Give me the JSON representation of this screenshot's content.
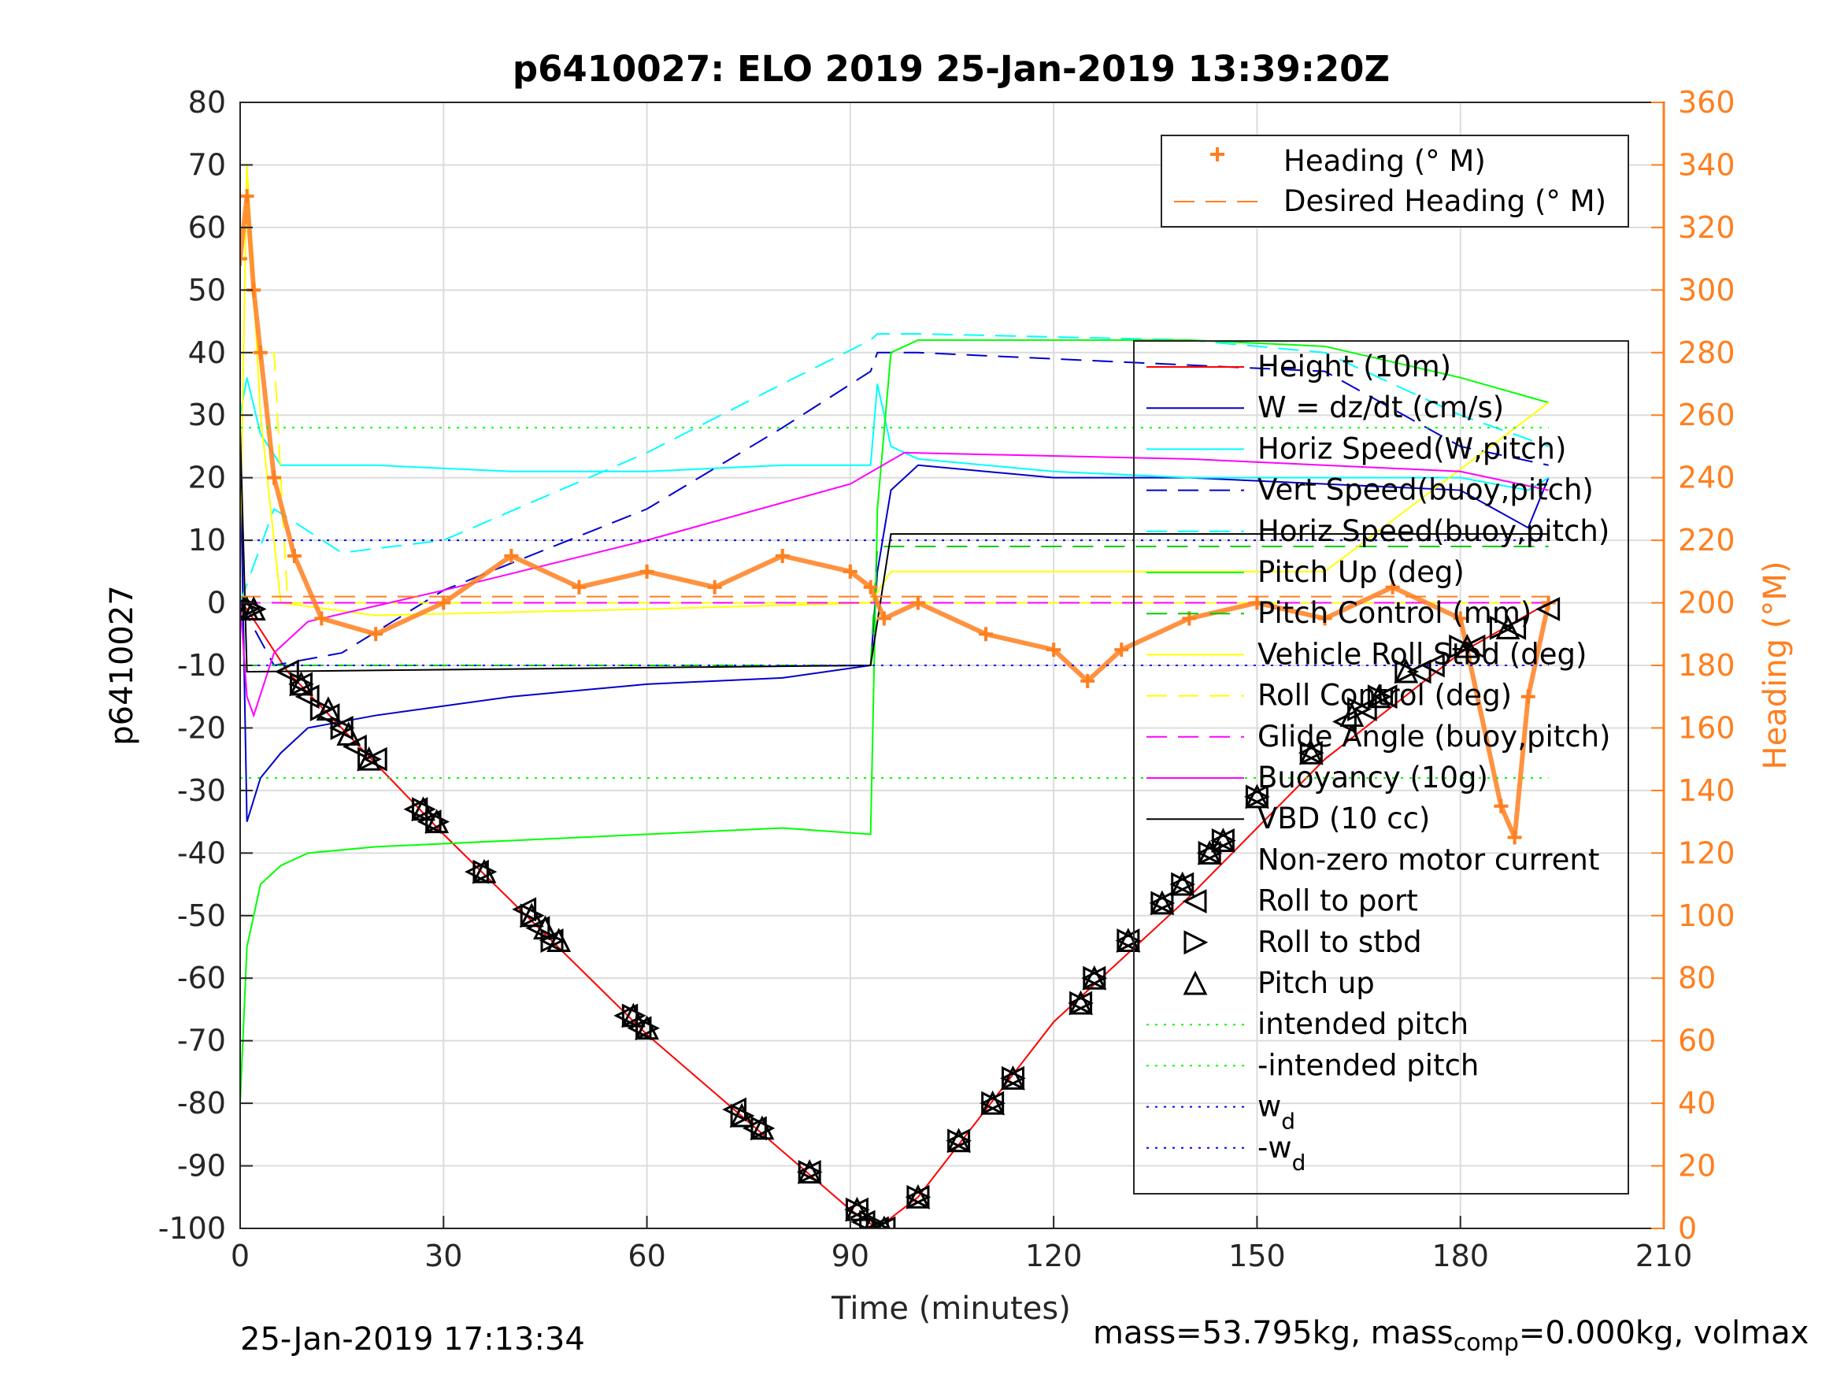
{
  "figure": {
    "title": "p6410027: ELO 2019 25-Jan-2019 13:39:20Z",
    "footer_left": "25-Jan-2019 17:13:34",
    "footer_right_prefix": "mass=53.795kg, mass",
    "footer_right_sub": "comp",
    "footer_right_suffix": "=0.000kg, volmax"
  },
  "chart_data": {
    "type": "line",
    "title": "p6410027: ELO 2019 25-Jan-2019 13:39:20Z",
    "xlabel": "Time (minutes)",
    "ylabel": "p6410027",
    "y2label": "Heading (°M)",
    "xlim": [
      0,
      210
    ],
    "ylim": [
      -100,
      80
    ],
    "y2lim": [
      0,
      360
    ],
    "xticks": [
      0,
      30,
      60,
      90,
      120,
      150,
      180,
      210
    ],
    "yticks": [
      -100,
      -90,
      -80,
      -70,
      -60,
      -50,
      -40,
      -30,
      -20,
      -10,
      0,
      10,
      20,
      30,
      40,
      50,
      60,
      70,
      80
    ],
    "y2ticks": [
      0,
      20,
      40,
      60,
      80,
      100,
      120,
      140,
      160,
      180,
      200,
      220,
      240,
      260,
      280,
      300,
      320,
      340,
      360
    ],
    "grid": true,
    "colors": {
      "height": "#ff0000",
      "w": "#0000cc",
      "horiz_speed_w": "#00ffff",
      "vert_speed_buoy": "#0000cc",
      "horiz_speed_buoy": "#00ffff",
      "pitch_up": "#00ff00",
      "pitch_control": "#00cc00",
      "roll_stbd": "#ffff00",
      "roll_control": "#ffff00",
      "glide_angle": "#ff00ff",
      "buoyancy": "#ff00ff",
      "vbd": "#000000",
      "heading": "#ff7f1f",
      "intended_pitch": "#00ff00",
      "wd": "#0000ff",
      "axis_right": "#ff7f1f"
    },
    "legend_heading": {
      "position": "top-right",
      "entries": [
        "Heading (° M)",
        "Desired Heading (° M)"
      ]
    },
    "legend_main": {
      "position": "right",
      "entries": [
        "Height (10m)",
        "W = dz/dt (cm/s)",
        "Horiz Speed(W,pitch)",
        "Vert Speed(buoy,pitch)",
        "Horiz Speed(buoy,pitch)",
        "Pitch Up (deg)",
        "Pitch Control (mm)",
        "Vehicle Roll Stbd (deg)",
        "Roll Control (deg)",
        "Glide Angle (buoy,pitch)",
        "Buoyancy (10g)",
        "VBD (10 cc)",
        "Non-zero motor current",
        "Roll to port",
        "Roll to stbd",
        "Pitch up",
        "intended pitch",
        "-intended pitch",
        "w",
        "-w"
      ],
      "subscript_entries": {
        "w": "d",
        "-w": "d"
      }
    },
    "series": [
      {
        "name": "Height (10m)",
        "x": [
          0,
          1,
          7,
          30,
          60,
          90,
          94,
          100,
          120,
          140,
          160,
          180,
          193
        ],
        "y": [
          0,
          -1,
          -11,
          -37,
          -69,
          -97,
          -100,
          -95,
          -67,
          -47,
          -25,
          -8,
          0
        ]
      },
      {
        "name": "W = dz/dt (cm/s)",
        "x": [
          0,
          1,
          3,
          6,
          10,
          20,
          40,
          60,
          80,
          93,
          94,
          96,
          100,
          120,
          140,
          160,
          180,
          190,
          193
        ],
        "y": [
          25,
          -35,
          -28,
          -24,
          -20,
          -18,
          -15,
          -13,
          -12,
          -10,
          5,
          18,
          22,
          20,
          20,
          19,
          18,
          12,
          20
        ]
      },
      {
        "name": "Horiz Speed(W,pitch)",
        "x": [
          0,
          1,
          3,
          6,
          10,
          20,
          40,
          60,
          80,
          93,
          94,
          96,
          100,
          120,
          140,
          160,
          180,
          190,
          193
        ],
        "y": [
          30,
          36,
          27,
          22,
          22,
          22,
          21,
          21,
          22,
          22,
          35,
          25,
          23,
          21,
          20,
          20,
          20,
          18,
          20
        ]
      },
      {
        "name": "Vert Speed(buoy,pitch)",
        "x": [
          0,
          5,
          15,
          30,
          60,
          80,
          93,
          94,
          100,
          140,
          160,
          180,
          193
        ],
        "y": [
          0,
          -10,
          -8,
          2,
          15,
          28,
          37,
          40,
          40,
          38,
          37,
          25,
          22
        ]
      },
      {
        "name": "Horiz Speed(buoy,pitch)",
        "x": [
          0,
          5,
          15,
          30,
          60,
          80,
          93,
          94,
          100,
          140,
          160,
          180,
          193
        ],
        "y": [
          0,
          15,
          8,
          10,
          24,
          35,
          42,
          43,
          43,
          42,
          40,
          30,
          25
        ]
      },
      {
        "name": "Pitch Up (deg)",
        "x": [
          0,
          1,
          3,
          6,
          10,
          20,
          40,
          60,
          80,
          93,
          94,
          96,
          100,
          120,
          140,
          160,
          180,
          193
        ],
        "y": [
          -80,
          -55,
          -45,
          -42,
          -40,
          -39,
          -38,
          -37,
          -36,
          -37,
          15,
          40,
          42,
          42,
          42,
          41,
          36,
          32
        ]
      },
      {
        "name": "Pitch Control (mm)",
        "x": [
          0,
          5,
          93,
          94,
          193
        ],
        "y": [
          -10,
          -10,
          -10,
          9,
          9
        ]
      },
      {
        "name": "Vehicle Roll Stbd (deg)",
        "x": [
          0,
          1,
          3,
          6,
          20,
          60,
          93,
          96,
          120,
          160,
          193
        ],
        "y": [
          10,
          70,
          30,
          0,
          -2,
          -1,
          0,
          5,
          5,
          5,
          32
        ]
      },
      {
        "name": "Roll Control (deg)",
        "x": [
          0,
          3,
          5,
          7,
          93,
          100,
          193
        ],
        "y": [
          40,
          40,
          40,
          0,
          0,
          0,
          0
        ]
      },
      {
        "name": "Glide Angle (buoy,pitch)",
        "x": [
          0,
          193
        ],
        "y": [
          0,
          0
        ]
      },
      {
        "name": "Buoyancy (10g)",
        "x": [
          0,
          1,
          2,
          5,
          10,
          30,
          60,
          90,
          98,
          140,
          180,
          193
        ],
        "y": [
          0,
          -15,
          -18,
          -8,
          -3,
          2,
          10,
          19,
          24,
          23,
          21,
          18
        ]
      },
      {
        "name": "VBD (10 cc)",
        "x": [
          0,
          1,
          2,
          93,
          96,
          193
        ],
        "y": [
          28,
          -11,
          -11,
          -10,
          11,
          11
        ]
      },
      {
        "name": "Heading (° M)",
        "x": [
          0,
          1,
          2,
          3,
          5,
          8,
          12,
          20,
          30,
          40,
          50,
          60,
          70,
          80,
          90,
          93,
          95,
          100,
          110,
          120,
          125,
          130,
          140,
          150,
          160,
          170,
          180,
          186,
          188,
          190,
          193
        ],
        "y2": [
          310,
          330,
          300,
          280,
          240,
          215,
          195,
          190,
          200,
          215,
          205,
          210,
          205,
          215,
          210,
          205,
          195,
          200,
          190,
          185,
          175,
          185,
          195,
          200,
          195,
          205,
          195,
          135,
          125,
          170,
          200
        ]
      },
      {
        "name": "Desired Heading (° M)",
        "x": [
          0,
          193
        ],
        "y2": [
          202,
          202
        ]
      },
      {
        "name": "intended pitch",
        "x": [
          0,
          193
        ],
        "y": [
          28,
          28
        ]
      },
      {
        "name": "-intended pitch",
        "x": [
          0,
          193
        ],
        "y": [
          -28,
          -28
        ]
      },
      {
        "name": "w",
        "x": [
          0,
          193
        ],
        "y": [
          10,
          10
        ]
      },
      {
        "name": "-w",
        "x": [
          0,
          193
        ],
        "y": [
          -10,
          -10
        ]
      }
    ],
    "markers": {
      "roll_to_port": [
        [
          7,
          -11
        ],
        [
          9,
          -13
        ],
        [
          10,
          -15
        ],
        [
          13,
          -18
        ],
        [
          15,
          -20
        ],
        [
          17,
          -23
        ],
        [
          20,
          -25
        ],
        [
          26,
          -33
        ],
        [
          28,
          -35
        ],
        [
          35,
          -43
        ],
        [
          42,
          -49
        ],
        [
          44,
          -52
        ],
        [
          46,
          -54
        ],
        [
          57,
          -66
        ],
        [
          59,
          -68
        ],
        [
          73,
          -81
        ],
        [
          76,
          -84
        ],
        [
          84,
          -91
        ],
        [
          91,
          -97
        ],
        [
          92,
          -99
        ],
        [
          94,
          -100
        ],
        [
          95,
          -100
        ],
        [
          100,
          -95
        ],
        [
          106,
          -86
        ],
        [
          111,
          -80
        ],
        [
          114,
          -76
        ],
        [
          124,
          -64
        ],
        [
          126,
          -60
        ],
        [
          131,
          -54
        ],
        [
          136,
          -48
        ],
        [
          139,
          -45
        ],
        [
          143,
          -40
        ],
        [
          145,
          -38
        ],
        [
          150,
          -31
        ],
        [
          158,
          -24
        ],
        [
          163,
          -19
        ],
        [
          166,
          -17
        ],
        [
          169,
          -15
        ],
        [
          174,
          -11
        ],
        [
          176,
          -10
        ],
        [
          182,
          -7
        ],
        [
          188,
          -4
        ],
        [
          193,
          -1
        ]
      ],
      "roll_to_stbd": [
        [
          1,
          -1
        ],
        [
          2,
          -1
        ],
        [
          9,
          -13
        ],
        [
          12,
          -17
        ],
        [
          15,
          -20
        ],
        [
          19,
          -25
        ],
        [
          27,
          -33
        ],
        [
          29,
          -35
        ],
        [
          36,
          -43
        ],
        [
          43,
          -50
        ],
        [
          46,
          -54
        ],
        [
          58,
          -66
        ],
        [
          60,
          -68
        ],
        [
          74,
          -82
        ],
        [
          77,
          -84
        ],
        [
          84,
          -91
        ],
        [
          91,
          -97
        ],
        [
          93,
          -99
        ],
        [
          94,
          -100
        ],
        [
          100,
          -95
        ],
        [
          106,
          -86
        ],
        [
          111,
          -80
        ],
        [
          114,
          -76
        ],
        [
          124,
          -64
        ],
        [
          126,
          -60
        ],
        [
          131,
          -54
        ],
        [
          136,
          -48
        ],
        [
          139,
          -45
        ],
        [
          143,
          -40
        ],
        [
          145,
          -38
        ],
        [
          150,
          -31
        ],
        [
          158,
          -24
        ],
        [
          165,
          -17
        ],
        [
          168,
          -15
        ],
        [
          172,
          -11
        ],
        [
          180,
          -7
        ],
        [
          186,
          -4
        ]
      ],
      "pitch_up": [
        [
          1,
          -1
        ],
        [
          2,
          -1
        ],
        [
          9,
          -13
        ],
        [
          13,
          -17
        ],
        [
          16,
          -21
        ],
        [
          19,
          -25
        ],
        [
          27,
          -33
        ],
        [
          29,
          -35
        ],
        [
          36,
          -43
        ],
        [
          43,
          -50
        ],
        [
          45,
          -52
        ],
        [
          47,
          -54
        ],
        [
          58,
          -66
        ],
        [
          60,
          -68
        ],
        [
          74,
          -82
        ],
        [
          77,
          -84
        ],
        [
          84,
          -91
        ],
        [
          91,
          -97
        ],
        [
          93,
          -100
        ],
        [
          95,
          -100
        ],
        [
          100,
          -95
        ],
        [
          106,
          -86
        ],
        [
          111,
          -80
        ],
        [
          114,
          -76
        ],
        [
          124,
          -64
        ],
        [
          126,
          -60
        ],
        [
          131,
          -54
        ],
        [
          136,
          -48
        ],
        [
          139,
          -45
        ],
        [
          143,
          -40
        ],
        [
          145,
          -38
        ],
        [
          150,
          -31
        ],
        [
          158,
          -24
        ],
        [
          164,
          -18
        ],
        [
          168,
          -15
        ],
        [
          172,
          -11
        ],
        [
          181,
          -7
        ],
        [
          187,
          -4
        ]
      ]
    }
  }
}
